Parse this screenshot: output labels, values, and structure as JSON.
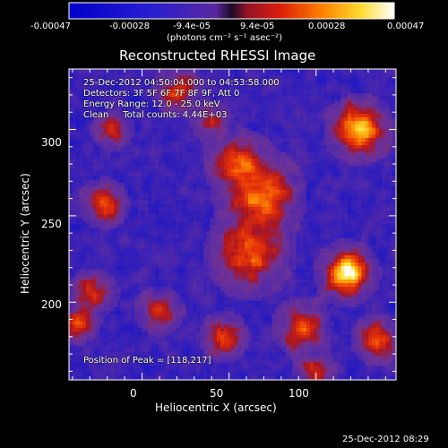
{
  "colorbar": {
    "ticks": [
      "-0.00047",
      "-0.00028",
      "-9.4e-05",
      "9.4e-05",
      "0.00028",
      "0.00047"
    ],
    "tick_values": [
      -0.00047,
      -0.00028,
      -9.4e-05,
      9.4e-05,
      0.00028,
      0.00047
    ],
    "range": [
      -0.00047,
      0.00047
    ],
    "units_label": "(photons cm⁻² s⁻¹ asec⁻²)"
  },
  "chart_data": {
    "type": "heatmap",
    "title": "Reconstructed RHESSI Image",
    "xlabel": "Heliocentric X (arcsec)",
    "ylabel": "Heliocentric Y (arcsec)",
    "xlim": [
      -42,
      146
    ],
    "ylim": [
      155,
      335
    ],
    "x_ticks": [
      0,
      50,
      100
    ],
    "y_ticks": [
      200,
      250,
      300
    ],
    "colormap": "rainbow-black/blue/purple/red/orange/yellow/white",
    "peak": [
      118,
      217
    ],
    "annotations": {
      "time_range": "25-Dec-2012 04:50:04.000 to 04:53:58.000",
      "detectors": "Detectors: 3F 5F 6F 7F 8F 9F, Att 0",
      "energy": "Energy Range: 12.0 - 25.0 keV",
      "clean": "Clean     Total counts: 4.44E+03",
      "peak_text": "Position of Peak = [118,217]"
    },
    "sources": [
      {
        "x": 118,
        "y": 217,
        "amp": 1.0,
        "sigma": 8
      },
      {
        "x": 125,
        "y": 300,
        "amp": 0.85,
        "sigma": 9
      },
      {
        "x": 68,
        "y": 262,
        "amp": 0.65,
        "sigma": 12
      },
      {
        "x": 62,
        "y": 228,
        "amp": 0.6,
        "sigma": 12
      },
      {
        "x": 55,
        "y": 282,
        "amp": 0.5,
        "sigma": 9
      },
      {
        "x": 20,
        "y": 322,
        "amp": 0.5,
        "sigma": 7
      },
      {
        "x": -17,
        "y": 300,
        "amp": 0.45,
        "sigma": 6
      },
      {
        "x": -22,
        "y": 257,
        "amp": 0.55,
        "sigma": 7
      },
      {
        "x": -28,
        "y": 205,
        "amp": 0.5,
        "sigma": 7
      },
      {
        "x": -37,
        "y": 188,
        "amp": 0.55,
        "sigma": 6
      },
      {
        "x": 92,
        "y": 185,
        "amp": 0.6,
        "sigma": 8
      },
      {
        "x": 47,
        "y": 180,
        "amp": 0.5,
        "sigma": 7
      },
      {
        "x": 135,
        "y": 178,
        "amp": 0.55,
        "sigma": 7
      },
      {
        "x": 40,
        "y": 305,
        "amp": 0.4,
        "sigma": 6
      },
      {
        "x": 10,
        "y": 195,
        "amp": 0.45,
        "sigma": 7
      },
      {
        "x": 100,
        "y": 160,
        "amp": 0.45,
        "sigma": 6
      }
    ]
  },
  "footer": {
    "timestamp": "25-Dec-2012 08:29"
  }
}
